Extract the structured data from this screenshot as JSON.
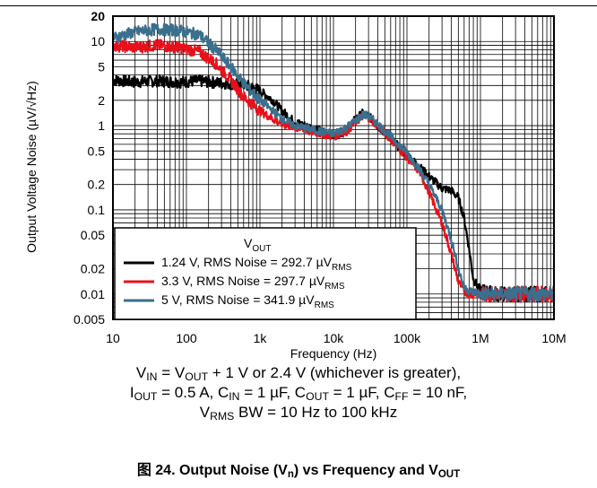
{
  "chart_data": {
    "type": "line",
    "x_scale": "log",
    "y_scale": "log",
    "xlabel": "Frequency (Hz)",
    "ylabel": "Output Voltage Noise (µV/√Hz)",
    "xlim": [
      10,
      10000000
    ],
    "ylim": [
      0.005,
      20
    ],
    "grid": true,
    "x_ticks": [
      {
        "value": 10,
        "label": "10"
      },
      {
        "value": 100,
        "label": "100"
      },
      {
        "value": 1000,
        "label": "1k"
      },
      {
        "value": 10000,
        "label": "10k"
      },
      {
        "value": 100000,
        "label": "100k"
      },
      {
        "value": 1000000,
        "label": "1M"
      },
      {
        "value": 10000000,
        "label": "10M"
      }
    ],
    "y_ticks": [
      {
        "value": 0.005,
        "label": "0.005"
      },
      {
        "value": 0.01,
        "label": "0.01"
      },
      {
        "value": 0.02,
        "label": "0.02"
      },
      {
        "value": 0.05,
        "label": "0.05"
      },
      {
        "value": 0.1,
        "label": "0.1"
      },
      {
        "value": 0.2,
        "label": "0.2"
      },
      {
        "value": 0.5,
        "label": "0.5"
      },
      {
        "value": 1,
        "label": "1"
      },
      {
        "value": 2,
        "label": "2"
      },
      {
        "value": 5,
        "label": "5"
      },
      {
        "value": 10,
        "label": "10"
      },
      {
        "value": 20,
        "label": "20"
      }
    ],
    "legend": {
      "placement": "bottom-left",
      "title_main": "V",
      "title_sub": "OUT",
      "entries": [
        {
          "prefix": "1.24 V, RMS Noise = 292.7 µV",
          "sub": "RMS"
        },
        {
          "prefix": "3.3 V, RMS Noise = 297.7  µV",
          "sub": "RMS"
        },
        {
          "prefix": "5 V, RMS Noise = 341.9  µV",
          "sub": "RMS"
        }
      ]
    },
    "series": [
      {
        "color": "#000000",
        "x": [
          10,
          20,
          40,
          80,
          150,
          300,
          600,
          1000,
          1500,
          2000,
          3000,
          5000,
          7000,
          10000,
          15000,
          20000,
          25000,
          30000,
          40000,
          60000,
          100000,
          150000,
          200000,
          300000,
          400000,
          500000,
          600000,
          700000,
          800000,
          1000000,
          1500000,
          2000000,
          5000000,
          10000000
        ],
        "y": [
          3.5,
          3.3,
          3.4,
          3.3,
          3.4,
          3.2,
          3.1,
          2.6,
          2.0,
          1.5,
          1.1,
          0.95,
          0.85,
          0.75,
          0.9,
          1.2,
          1.4,
          1.3,
          1.0,
          0.7,
          0.45,
          0.32,
          0.25,
          0.18,
          0.17,
          0.14,
          0.08,
          0.035,
          0.015,
          0.011,
          0.01,
          0.01,
          0.01,
          0.01
        ]
      },
      {
        "color": "#e8101a",
        "x": [
          10,
          20,
          40,
          80,
          150,
          250,
          400,
          600,
          1000,
          1500,
          2000,
          3000,
          5000,
          7000,
          10000,
          15000,
          20000,
          25000,
          30000,
          40000,
          60000,
          100000,
          150000,
          200000,
          300000,
          400000,
          500000,
          600000,
          700000,
          1000000,
          2000000,
          5000000,
          10000000
        ],
        "y": [
          9,
          8.5,
          9,
          8.5,
          7.5,
          5.5,
          3.5,
          2.2,
          1.5,
          1.2,
          1.05,
          0.95,
          0.85,
          0.8,
          0.75,
          0.85,
          1.1,
          1.3,
          1.25,
          1.0,
          0.7,
          0.42,
          0.28,
          0.16,
          0.07,
          0.03,
          0.014,
          0.011,
          0.01,
          0.01,
          0.01,
          0.01,
          0.01
        ]
      },
      {
        "color": "#3a6f8d",
        "x": [
          10,
          20,
          40,
          80,
          150,
          250,
          400,
          600,
          1000,
          1500,
          2000,
          3000,
          5000,
          7000,
          10000,
          15000,
          20000,
          25000,
          30000,
          40000,
          60000,
          100000,
          150000,
          200000,
          300000,
          400000,
          500000,
          600000,
          700000,
          1000000,
          2000000,
          5000000,
          10000000
        ],
        "y": [
          11,
          13,
          14,
          13.5,
          12,
          8,
          5,
          3.2,
          2.0,
          1.5,
          1.2,
          1.0,
          0.9,
          0.85,
          0.8,
          0.95,
          1.15,
          1.35,
          1.3,
          1.05,
          0.75,
          0.48,
          0.3,
          0.2,
          0.1,
          0.045,
          0.02,
          0.012,
          0.011,
          0.01,
          0.01,
          0.01,
          0.01
        ]
      }
    ]
  },
  "conditions": {
    "line1": {
      "a": "V",
      "a_sub": "IN",
      "b": " = V",
      "b_sub": "OUT",
      "c": " + 1 V or 2.4 V (whichever is greater),"
    },
    "line2": {
      "a": "I",
      "a_sub": "OUT",
      "b": " = 0.5 A, C",
      "b_sub": "IN",
      "c": " = 1 µF, C",
      "c_sub": "OUT",
      "d": " = 1 µF, C",
      "d_sub": "FF",
      "e": " = 10 nF,"
    },
    "line3": {
      "a": "V",
      "a_sub": "RMS",
      "b": " BW = 10 Hz to 100 kHz"
    }
  },
  "caption": {
    "a": "图 24. Output Noise (V",
    "a_sub": "n",
    "b": ") vs Frequency and V",
    "b_sub": "OUT"
  }
}
